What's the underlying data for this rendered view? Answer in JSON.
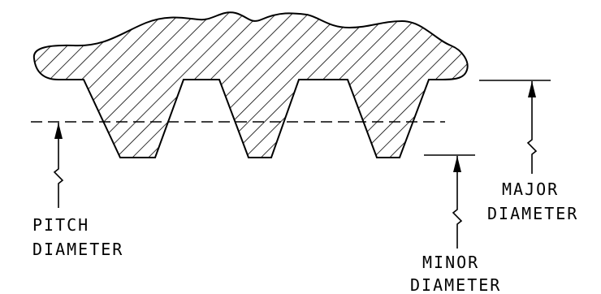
{
  "labels": {
    "pitch_line1": "PITCH",
    "pitch_line2": "DIAMETER",
    "major_line1": "MAJOR",
    "major_line2": "DIAMETER",
    "minor_line1": "MINOR",
    "minor_line2": "DIAMETER"
  },
  "colors": {
    "stroke": "#000000",
    "background": "#ffffff"
  }
}
